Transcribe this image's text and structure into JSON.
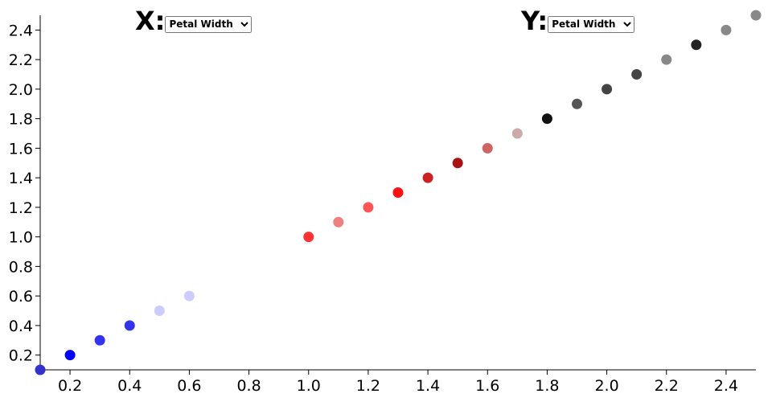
{
  "chart_data": {
    "type": "scatter",
    "x": [
      0.1,
      0.2,
      0.3,
      0.4,
      0.5,
      0.6,
      1.0,
      1.1,
      1.2,
      1.3,
      1.4,
      1.5,
      1.6,
      1.7,
      1.8,
      1.9,
      2.0,
      2.1,
      2.2,
      2.3,
      2.4,
      2.5
    ],
    "y": [
      0.1,
      0.2,
      0.3,
      0.4,
      0.5,
      0.6,
      1.0,
      1.1,
      1.2,
      1.3,
      1.4,
      1.5,
      1.6,
      1.7,
      1.8,
      1.9,
      2.0,
      2.1,
      2.2,
      2.3,
      2.4,
      2.5
    ],
    "colors": [
      "#3333cc",
      "#0000ff",
      "#3333ee",
      "#3333ee",
      "#ccccff",
      "#ccccff",
      "#ff3333",
      "#f08080",
      "#ff5555",
      "#ff1111",
      "#cc2222",
      "#aa1111",
      "#cc6666",
      "#ccaaaa",
      "#111111",
      "#555555",
      "#444444",
      "#444444",
      "#888888",
      "#222222",
      "#888888",
      "#888888"
    ],
    "xlim": [
      0.1,
      2.5
    ],
    "ylim": [
      0.1,
      2.5
    ],
    "xticks": [
      0.2,
      0.4,
      0.6,
      0.8,
      {
        "value": 1,
        "label": "1.0"
      },
      1.2,
      1.4,
      1.6,
      1.8,
      {
        "value": 2,
        "label": "2.0"
      },
      2.2,
      2.4
    ],
    "yticks": [
      0.2,
      0.4,
      0.6,
      0.8,
      {
        "value": 1,
        "label": "1.0"
      },
      1.2,
      1.4,
      1.6,
      1.8,
      {
        "value": 2,
        "label": "2.0"
      },
      2.2,
      2.4
    ]
  },
  "controls": {
    "x": {
      "label": "X:",
      "selected": "Petal Width"
    },
    "y": {
      "label": "Y:",
      "selected": "Petal Width"
    }
  }
}
